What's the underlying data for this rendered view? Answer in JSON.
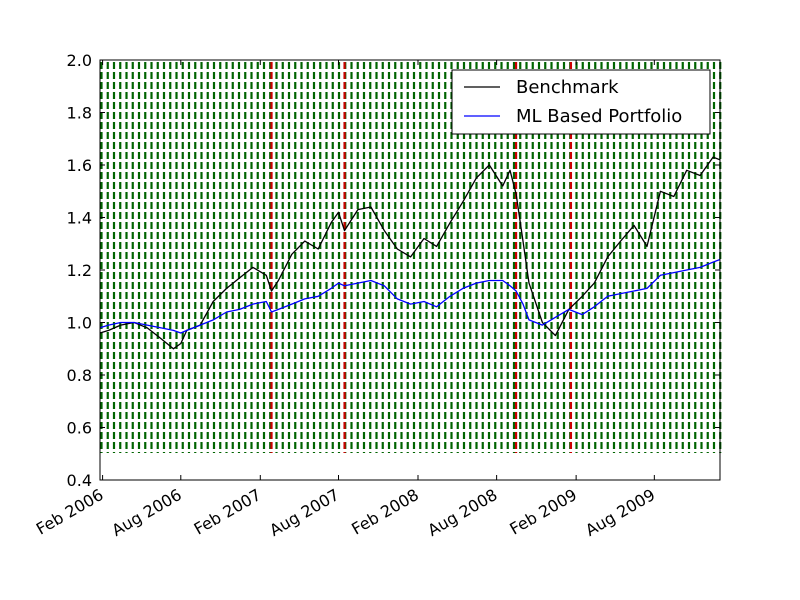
{
  "chart_data": {
    "type": "line",
    "title": "",
    "xlabel": "",
    "ylabel": "",
    "ylim": [
      0.4,
      2.0
    ],
    "xlim": [
      "2006-01-26",
      "2009-12-31"
    ],
    "yticks": [
      "0.4",
      "0.6",
      "0.8",
      "1.0",
      "1.2",
      "1.4",
      "1.6",
      "1.8",
      "2.0"
    ],
    "xticks": [
      {
        "date": "2006-02-01",
        "label": "Feb 2006"
      },
      {
        "date": "2006-08-01",
        "label": "Aug 2006"
      },
      {
        "date": "2007-02-01",
        "label": "Feb 2007"
      },
      {
        "date": "2007-08-01",
        "label": "Aug 2007"
      },
      {
        "date": "2008-02-01",
        "label": "Feb 2008"
      },
      {
        "date": "2008-08-01",
        "label": "Aug 2008"
      },
      {
        "date": "2009-02-01",
        "label": "Feb 2009"
      },
      {
        "date": "2009-08-01",
        "label": "Aug 2009"
      }
    ],
    "legend": "top-right",
    "colors": {
      "benchmark": "#000000",
      "portfolio": "#0000ff",
      "regime_lines": "#006400",
      "event_lines": "#cc0000"
    },
    "event_dates": [
      "2007-02-27",
      "2007-08-15",
      "2008-09-15",
      "2009-01-20"
    ],
    "series": [
      {
        "name": "Benchmark",
        "x": [
          "2006-01-26",
          "2006-02-15",
          "2006-03-15",
          "2006-04-15",
          "2006-05-15",
          "2006-06-15",
          "2006-07-15",
          "2006-08-01",
          "2006-08-15",
          "2006-09-15",
          "2006-10-15",
          "2006-11-15",
          "2006-12-15",
          "2007-01-15",
          "2007-02-15",
          "2007-02-27",
          "2007-03-15",
          "2007-04-15",
          "2007-05-15",
          "2007-06-15",
          "2007-07-15",
          "2007-08-01",
          "2007-08-15",
          "2007-09-15",
          "2007-10-15",
          "2007-11-15",
          "2007-12-15",
          "2008-01-15",
          "2008-02-15",
          "2008-03-15",
          "2008-04-15",
          "2008-05-15",
          "2008-06-15",
          "2008-07-15",
          "2008-08-15",
          "2008-09-01",
          "2008-09-15",
          "2008-10-01",
          "2008-10-15",
          "2008-11-15",
          "2008-12-15",
          "2009-01-15",
          "2009-02-15",
          "2009-03-15",
          "2009-04-15",
          "2009-05-15",
          "2009-06-15",
          "2009-07-15",
          "2009-08-15",
          "2009-09-15",
          "2009-10-15",
          "2009-11-15",
          "2009-12-15",
          "2009-12-31"
        ],
        "y": [
          0.96,
          0.97,
          0.99,
          1.0,
          0.98,
          0.94,
          0.9,
          0.92,
          0.97,
          0.99,
          1.08,
          1.13,
          1.17,
          1.21,
          1.18,
          1.12,
          1.16,
          1.26,
          1.31,
          1.28,
          1.38,
          1.42,
          1.35,
          1.43,
          1.44,
          1.35,
          1.28,
          1.25,
          1.32,
          1.29,
          1.38,
          1.46,
          1.55,
          1.6,
          1.52,
          1.58,
          1.49,
          1.31,
          1.15,
          1.0,
          0.95,
          1.05,
          1.1,
          1.15,
          1.25,
          1.31,
          1.37,
          1.29,
          1.5,
          1.48,
          1.58,
          1.56,
          1.63,
          1.62
        ]
      },
      {
        "name": "ML Based Portfolio",
        "x": [
          "2006-01-26",
          "2006-02-15",
          "2006-03-15",
          "2006-04-15",
          "2006-05-15",
          "2006-06-15",
          "2006-07-15",
          "2006-08-01",
          "2006-08-15",
          "2006-09-15",
          "2006-10-15",
          "2006-11-15",
          "2006-12-15",
          "2007-01-15",
          "2007-02-15",
          "2007-02-27",
          "2007-03-15",
          "2007-04-15",
          "2007-05-15",
          "2007-06-15",
          "2007-07-15",
          "2007-08-01",
          "2007-08-15",
          "2007-09-15",
          "2007-10-15",
          "2007-11-15",
          "2007-12-15",
          "2008-01-15",
          "2008-02-15",
          "2008-03-15",
          "2008-04-15",
          "2008-05-15",
          "2008-06-15",
          "2008-07-15",
          "2008-08-15",
          "2008-09-01",
          "2008-09-15",
          "2008-10-01",
          "2008-10-15",
          "2008-11-15",
          "2008-12-15",
          "2009-01-15",
          "2009-02-15",
          "2009-03-15",
          "2009-04-15",
          "2009-05-15",
          "2009-06-15",
          "2009-07-15",
          "2009-08-15",
          "2009-09-15",
          "2009-10-15",
          "2009-11-15",
          "2009-12-15",
          "2009-12-31"
        ],
        "y": [
          0.98,
          0.99,
          1.0,
          1.0,
          0.99,
          0.98,
          0.97,
          0.96,
          0.97,
          0.99,
          1.01,
          1.04,
          1.05,
          1.07,
          1.08,
          1.04,
          1.05,
          1.07,
          1.09,
          1.1,
          1.13,
          1.15,
          1.14,
          1.15,
          1.16,
          1.14,
          1.09,
          1.07,
          1.08,
          1.06,
          1.1,
          1.13,
          1.15,
          1.16,
          1.16,
          1.14,
          1.12,
          1.07,
          1.01,
          0.99,
          1.02,
          1.05,
          1.03,
          1.06,
          1.1,
          1.11,
          1.12,
          1.13,
          1.18,
          1.19,
          1.2,
          1.21,
          1.23,
          1.24
        ]
      }
    ]
  }
}
